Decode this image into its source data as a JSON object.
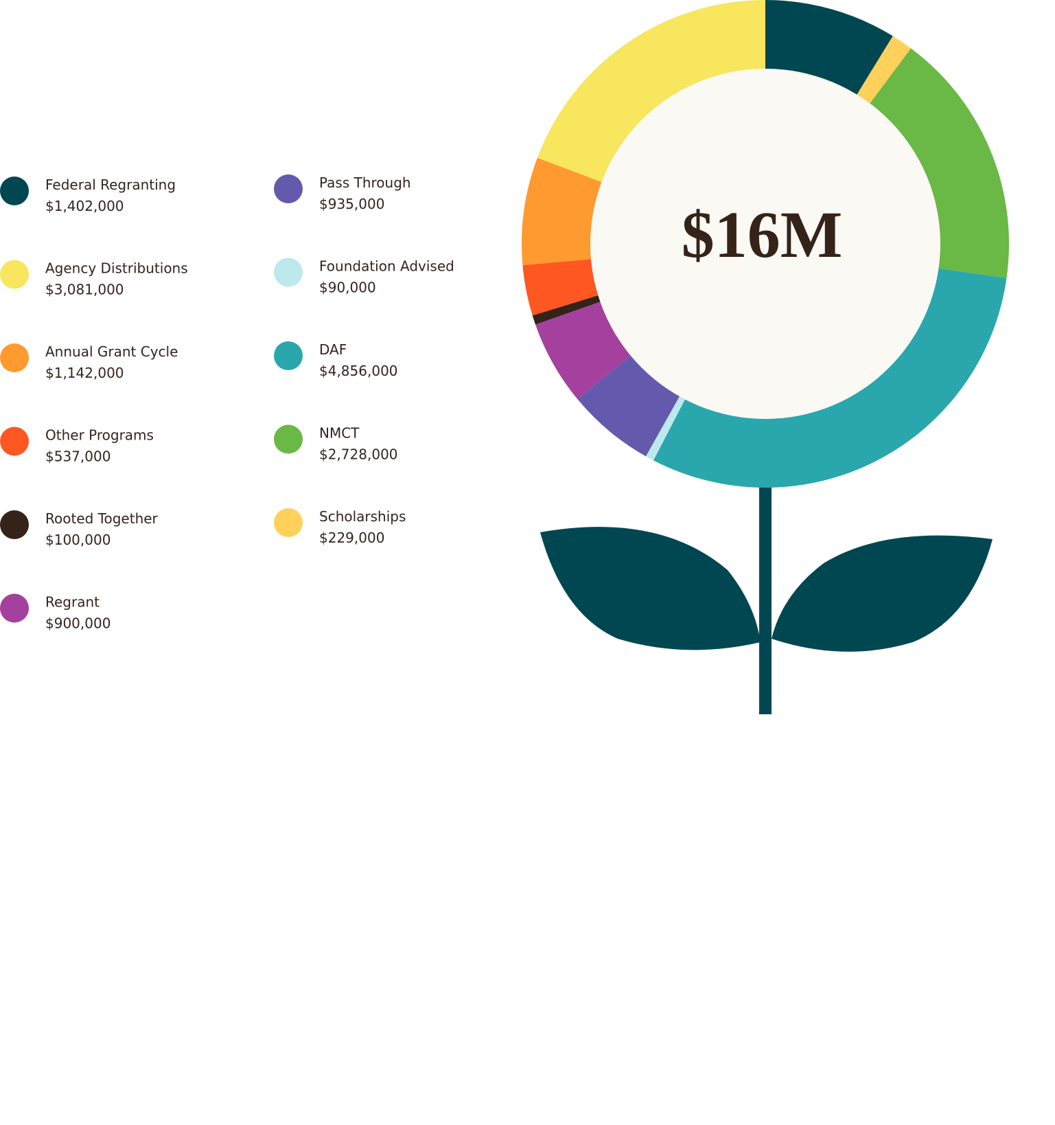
{
  "chart_data": {
    "type": "donut",
    "center_label": "$16M",
    "categories": [
      "Federal Regranting",
      "Scholarships",
      "NMCT",
      "DAF",
      "Foundation Advised",
      "Pass Through",
      "Regrant",
      "Rooted Together",
      "Other Programs",
      "Annual Grant Cycle",
      "Agency Distributions"
    ],
    "values": [
      1402000,
      229000,
      2728000,
      4856000,
      90000,
      935000,
      900000,
      100000,
      537000,
      1142000,
      3081000
    ],
    "value_labels": [
      "$1,402,000",
      "$229,000",
      "$2,728,000",
      "$4,856,000",
      "$90,000",
      "$935,000",
      "$900,000",
      "$100,000",
      "$537,000",
      "$1,142,000",
      "$3,081,000"
    ],
    "colors": [
      "#004752",
      "#ffd05a",
      "#6ab845",
      "#2aa7ad",
      "#bde8ec",
      "#635aad",
      "#a4409e",
      "#35231a",
      "#ff5722",
      "#ff9a30",
      "#f7e65e"
    ]
  }
}
